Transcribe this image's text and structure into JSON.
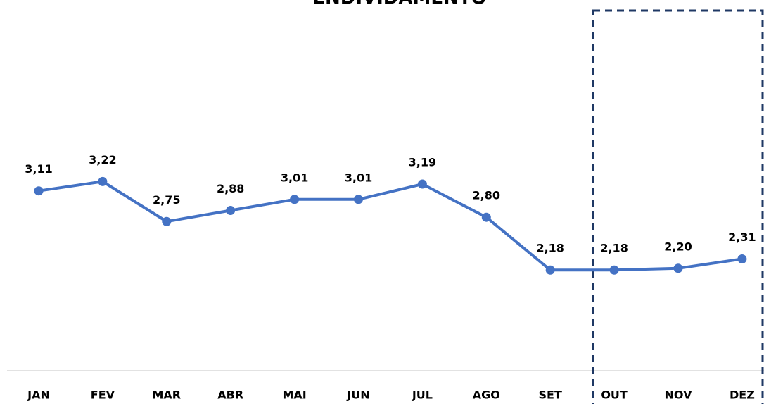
{
  "chart_data": {
    "type": "line",
    "title": "ENDIVIDAMENTO",
    "categories": [
      "JAN",
      "FEV",
      "MAR",
      "ABR",
      "MAI",
      "JUN",
      "JUL",
      "AGO",
      "SET",
      "OUT",
      "NOV",
      "DEZ"
    ],
    "series": [
      {
        "name": "ENDIVIDAMENTO",
        "color": "#4472c4",
        "values": [
          3.11,
          3.22,
          2.75,
          2.88,
          3.01,
          3.01,
          3.19,
          2.8,
          2.18,
          2.18,
          2.2,
          2.31
        ],
        "value_labels": [
          "3,11",
          "3,22",
          "2,75",
          "2,88",
          "3,01",
          "3,01",
          "3,19",
          "2,80",
          "2,18",
          "2,18",
          "2,20",
          "2,31"
        ]
      }
    ],
    "ylim": [
      1,
      5
    ]
  }
}
